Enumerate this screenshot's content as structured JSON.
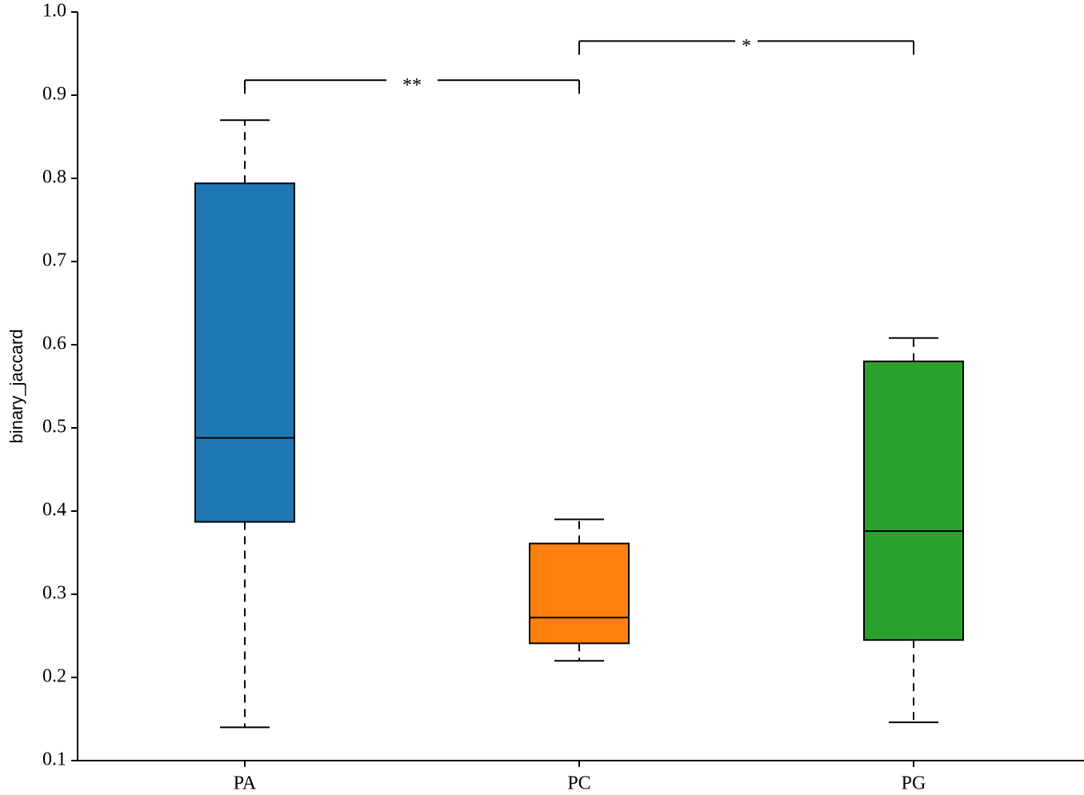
{
  "chart_data": {
    "type": "box",
    "ylabel": "binary_jaccard",
    "xlabel": "",
    "ylim": [
      0.1,
      1.0
    ],
    "yticks": [
      "0.1",
      "0.2",
      "0.3",
      "0.4",
      "0.5",
      "0.6",
      "0.7",
      "0.8",
      "0.9",
      "1.0"
    ],
    "categories": [
      "PA",
      "PC",
      "PG"
    ],
    "boxes": [
      {
        "name": "PA",
        "color": "#1f77b4",
        "whisker_low": 0.14,
        "q1": 0.387,
        "median": 0.488,
        "q3": 0.794,
        "whisker_high": 0.87
      },
      {
        "name": "PC",
        "color": "#ff7f0e",
        "whisker_low": 0.22,
        "q1": 0.241,
        "median": 0.272,
        "q3": 0.361,
        "whisker_high": 0.39
      },
      {
        "name": "PG",
        "color": "#2ca02c",
        "whisker_low": 0.146,
        "q1": 0.245,
        "median": 0.376,
        "q3": 0.58,
        "whisker_high": 0.608
      }
    ],
    "significance": [
      {
        "from": "PA",
        "to": "PC",
        "label": "**",
        "level": 0.918
      },
      {
        "from": "PC",
        "to": "PG",
        "label": "*",
        "level": 0.965
      }
    ],
    "grid": false,
    "legend": "none"
  }
}
